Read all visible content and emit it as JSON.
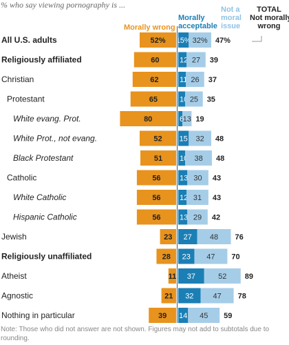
{
  "subtitle": "% who say viewing pornography is ...",
  "headers": {
    "morally_wrong": [
      "Morally wrong"
    ],
    "morally_acceptable": [
      "Morally",
      "acceptable"
    ],
    "not_moral_issue": [
      "Not a",
      "moral",
      "issue"
    ],
    "total_not_wrong": [
      "TOTAL",
      "Not morally",
      "wrong"
    ]
  },
  "colors": {
    "morally_wrong": "#e8931e",
    "morally_acceptable": "#1b7fb5",
    "not_moral_issue": "#a6cde8",
    "text": "#222222",
    "axis": "#555555"
  },
  "note": "Note: Those who did not answer are not shown. Figures may not add to subtotals due to rounding.",
  "chart_data": {
    "type": "bar",
    "subtitle": "% who say viewing pornography is ...",
    "series_names": [
      "Morally wrong",
      "Morally acceptable",
      "Not a moral issue",
      "TOTAL Not morally wrong"
    ],
    "rows": [
      {
        "label": "All U.S. adults",
        "style": "bold",
        "wrong": "52%",
        "acceptable": "15%",
        "not_moral": "32%",
        "total": "47%"
      },
      {
        "label": "Religiously affiliated",
        "style": "bold",
        "wrong": 60,
        "acceptable": 12,
        "not_moral": 27,
        "total": 39
      },
      {
        "label": "Christian",
        "style": "normal",
        "wrong": 62,
        "acceptable": 11,
        "not_moral": 26,
        "total": 37
      },
      {
        "label": "Protestant",
        "style": "indent1",
        "wrong": 65,
        "acceptable": 10,
        "not_moral": 25,
        "total": 35
      },
      {
        "label": "White evang. Prot.",
        "style": "indent2",
        "wrong": 80,
        "acceptable": 6,
        "not_moral": 13,
        "total": 19
      },
      {
        "label": "White Prot., not evang.",
        "style": "indent2",
        "wrong": 52,
        "acceptable": 15,
        "not_moral": 32,
        "total": 48
      },
      {
        "label": "Black Protestant",
        "style": "indent2",
        "wrong": 51,
        "acceptable": 10,
        "not_moral": 38,
        "total": 48
      },
      {
        "label": "Catholic",
        "style": "indent1",
        "wrong": 56,
        "acceptable": 13,
        "not_moral": 30,
        "total": 43
      },
      {
        "label": "White Catholic",
        "style": "indent2",
        "wrong": 56,
        "acceptable": 12,
        "not_moral": 31,
        "total": 43
      },
      {
        "label": "Hispanic Catholic",
        "style": "indent2",
        "wrong": 56,
        "acceptable": 13,
        "not_moral": 29,
        "total": 42
      },
      {
        "label": "Jewish",
        "style": "normal",
        "wrong": 23,
        "acceptable": 27,
        "not_moral": 48,
        "total": 76
      },
      {
        "label": "Religiously unaffiliated",
        "style": "bold",
        "wrong": 28,
        "acceptable": 23,
        "not_moral": 47,
        "total": 70
      },
      {
        "label": "Atheist",
        "style": "normal",
        "wrong": 11,
        "acceptable": 37,
        "not_moral": 52,
        "total": 89
      },
      {
        "label": "Agnostic",
        "style": "normal",
        "wrong": 21,
        "acceptable": 32,
        "not_moral": 47,
        "total": 78
      },
      {
        "label": "Nothing in particular",
        "style": "normal",
        "wrong": 39,
        "acceptable": 14,
        "not_moral": 45,
        "total": 59
      }
    ]
  }
}
